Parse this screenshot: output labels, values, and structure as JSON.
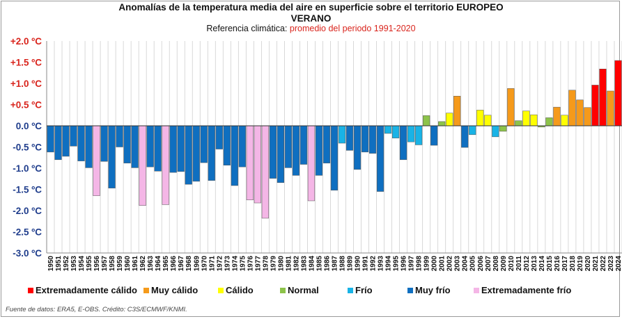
{
  "header": {
    "title_line1": "Anomalías de la temperatura media del aire en superficie sobre el territorio EUROPEO",
    "title_line2": "VERANO",
    "subtitle_prefix": "Referencia climática:",
    "subtitle_highlight": "promedio del periodo 1991-2020"
  },
  "colors": {
    "extremadamente_calido": "#ff0000",
    "muy_calido": "#f59a1b",
    "calido": "#ffff00",
    "normal": "#8dc34a",
    "frio": "#19b3e6",
    "muy_frio": "#0f6fc0",
    "extremadamente_frio": "#f4b6e6",
    "axis_label_positive": "#d9241c",
    "axis_label_negative": "#1f3d8c"
  },
  "legend": {
    "items": [
      {
        "label": "Extremadamente cálido",
        "category": "extremadamente_calido",
        "color": "#ff0000"
      },
      {
        "label": "Muy cálido",
        "category": "muy_calido",
        "color": "#f59a1b"
      },
      {
        "label": "Cálido",
        "category": "calido",
        "color": "#ffff00"
      },
      {
        "label": "Normal",
        "category": "normal",
        "color": "#8dc34a"
      },
      {
        "label": "Frío",
        "category": "frio",
        "color": "#19b3e6"
      },
      {
        "label": "Muy frío",
        "category": "muy_frio",
        "color": "#0f6fc0"
      },
      {
        "label": "Extremadamente frío",
        "category": "extremadamente_frio",
        "color": "#f4b6e6"
      }
    ]
  },
  "footer": {
    "source": "Fuente de datos: ERA5, E-OBS. Crédito: C3S/ECMWF/KNMI."
  },
  "chart_data": {
    "type": "bar",
    "title": "Anomalías de la temperatura media del aire en superficie sobre el territorio EUROPEO",
    "subtitle": "VERANO",
    "ylim": [
      -3.0,
      2.0
    ],
    "yticks": [
      2.0,
      1.5,
      1.0,
      0.5,
      0.0,
      -0.5,
      -1.0,
      -1.5,
      -2.0,
      -2.5,
      -3.0
    ],
    "ytick_labels": [
      "+2.0 ºC",
      "+1.5 ºC",
      "+1.0 ºC",
      "+0.5 ºC",
      "0.0 ºC",
      "-0.5 ºC",
      "-1.0 ºC",
      "-1.5 ºC",
      "-2.0 ºC",
      "-2.5 ºC",
      "-3.0 ºC"
    ],
    "grid": "vertical",
    "legend_position": "bottom",
    "categories": [
      "1950",
      "1951",
      "1952",
      "1953",
      "1954",
      "1955",
      "1956",
      "1957",
      "1958",
      "1959",
      "1960",
      "1961",
      "1962",
      "1963",
      "1964",
      "1965",
      "1966",
      "1967",
      "1968",
      "1969",
      "1970",
      "1971",
      "1972",
      "1973",
      "1974",
      "1975",
      "1976",
      "1977",
      "1978",
      "1979",
      "1980",
      "1981",
      "1982",
      "1983",
      "1984",
      "1985",
      "1986",
      "1987",
      "1988",
      "1989",
      "1990",
      "1991",
      "1992",
      "1993",
      "1994",
      "1995",
      "1996",
      "1997",
      "1998",
      "1999",
      "2000",
      "2001",
      "2002",
      "2003",
      "2004",
      "2005",
      "2006",
      "2007",
      "2008",
      "2009",
      "2010",
      "2011",
      "2012",
      "2013",
      "2014",
      "2015",
      "2016",
      "2017",
      "2018",
      "2019",
      "2020",
      "2021",
      "2022",
      "2023",
      "2024"
    ],
    "values": [
      -0.62,
      -0.8,
      -0.72,
      -0.48,
      -0.83,
      -0.99,
      -1.65,
      -0.84,
      -1.47,
      -0.5,
      -0.88,
      -0.99,
      -1.88,
      -0.97,
      -1.07,
      -1.86,
      -1.1,
      -1.08,
      -1.38,
      -1.31,
      -0.87,
      -1.29,
      -0.55,
      -0.93,
      -1.41,
      -0.97,
      -1.75,
      -1.82,
      -2.18,
      -1.24,
      -1.34,
      -0.99,
      -1.17,
      -0.91,
      -1.77,
      -1.17,
      -0.88,
      -1.52,
      -0.41,
      -0.58,
      -1.03,
      -0.62,
      -0.65,
      -1.55,
      -0.18,
      -0.29,
      -0.8,
      -0.38,
      -0.45,
      0.24,
      -0.46,
      0.1,
      0.3,
      0.7,
      -0.51,
      -0.21,
      0.37,
      0.25,
      -0.26,
      -0.13,
      0.88,
      0.12,
      0.35,
      0.26,
      -0.03,
      0.19,
      0.44,
      0.25,
      0.84,
      0.61,
      0.43,
      0.96,
      1.34,
      0.82,
      1.54
    ],
    "value_categories": [
      "muy_frio",
      "muy_frio",
      "muy_frio",
      "muy_frio",
      "muy_frio",
      "muy_frio",
      "extremadamente_frio",
      "muy_frio",
      "muy_frio",
      "muy_frio",
      "muy_frio",
      "muy_frio",
      "extremadamente_frio",
      "muy_frio",
      "muy_frio",
      "extremadamente_frio",
      "muy_frio",
      "muy_frio",
      "muy_frio",
      "muy_frio",
      "muy_frio",
      "muy_frio",
      "muy_frio",
      "muy_frio",
      "muy_frio",
      "muy_frio",
      "extremadamente_frio",
      "extremadamente_frio",
      "extremadamente_frio",
      "muy_frio",
      "muy_frio",
      "muy_frio",
      "muy_frio",
      "muy_frio",
      "extremadamente_frio",
      "muy_frio",
      "muy_frio",
      "muy_frio",
      "frio",
      "muy_frio",
      "muy_frio",
      "muy_frio",
      "muy_frio",
      "muy_frio",
      "frio",
      "frio",
      "muy_frio",
      "frio",
      "frio",
      "normal",
      "muy_frio",
      "normal",
      "calido",
      "muy_calido",
      "muy_frio",
      "frio",
      "calido",
      "calido",
      "frio",
      "normal",
      "muy_calido",
      "normal",
      "calido",
      "calido",
      "normal",
      "normal",
      "muy_calido",
      "calido",
      "muy_calido",
      "muy_calido",
      "muy_calido",
      "extremadamente_calido",
      "extremadamente_calido",
      "muy_calido",
      "extremadamente_calido"
    ]
  }
}
